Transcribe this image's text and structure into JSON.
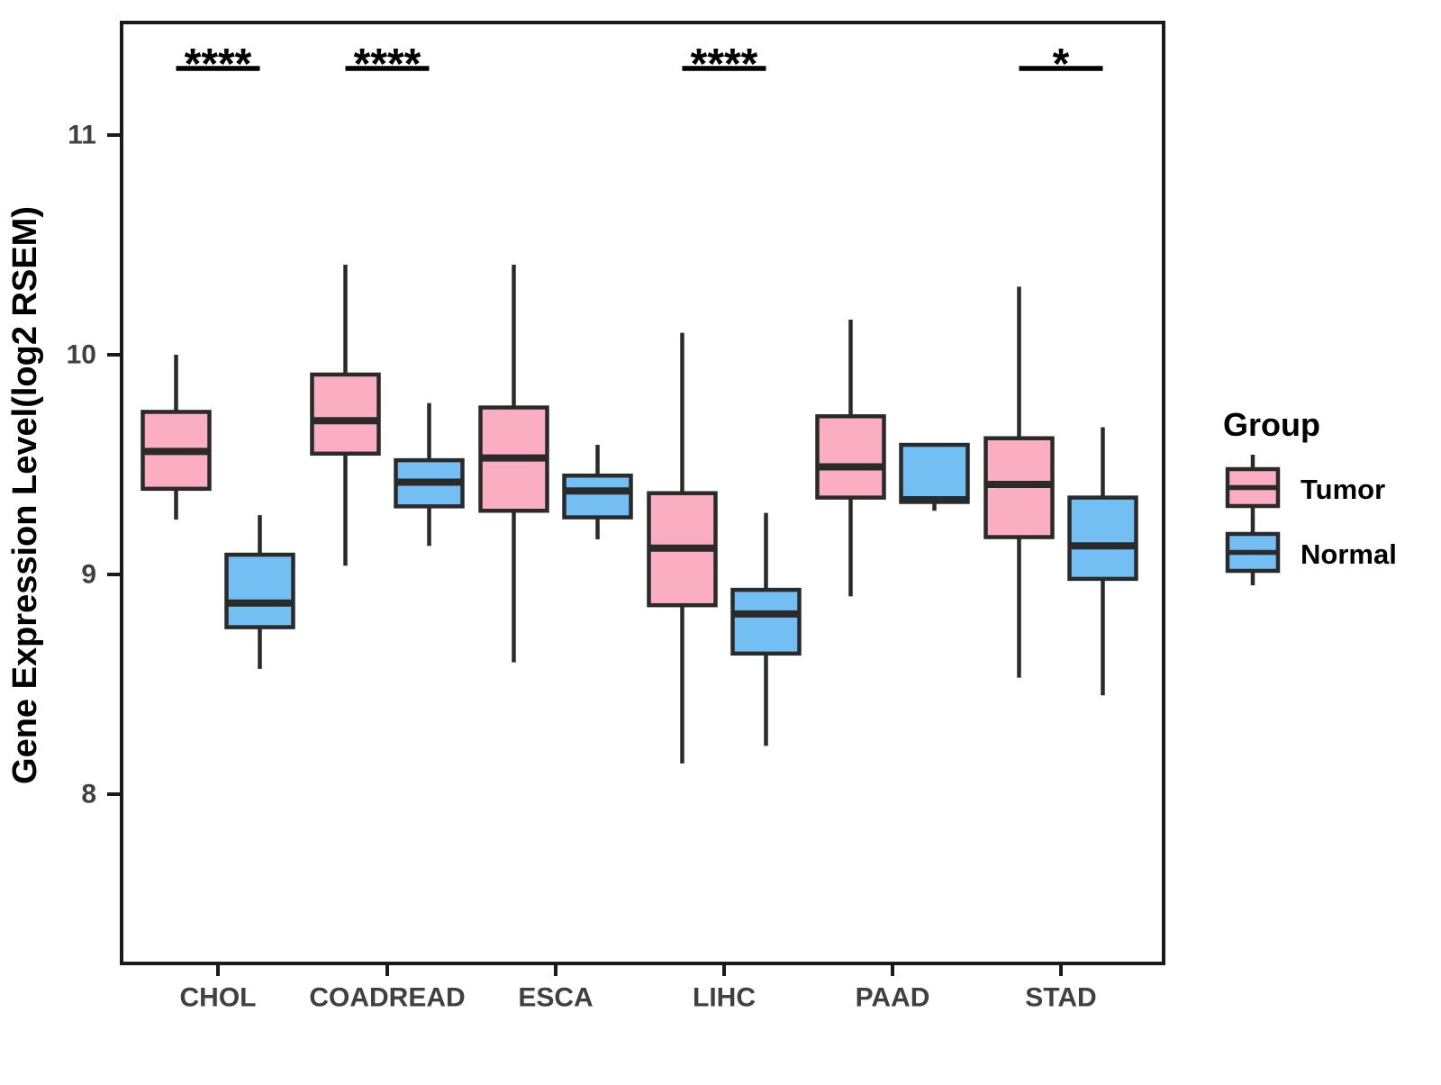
{
  "chart_data": {
    "type": "boxplot",
    "title": "",
    "ylabel": "Gene Expression Level(log2 RSEM)",
    "xlabel": "",
    "categories": [
      "CHOL",
      "COADREAD",
      "ESCA",
      "LIHC",
      "PAAD",
      "STAD"
    ],
    "y_axis": {
      "ticks": [
        8,
        9,
        10,
        11
      ],
      "range": [
        7.23,
        11.51
      ],
      "grid": false
    },
    "legend": {
      "title": "Group",
      "position": "right"
    },
    "series": [
      {
        "name": "Tumor",
        "color": "#FBAEC1",
        "boxes": [
          {
            "category": "CHOL",
            "min": 9.25,
            "q1": 9.39,
            "median": 9.56,
            "q3": 9.74,
            "max": 10.0
          },
          {
            "category": "COADREAD",
            "min": 9.04,
            "q1": 9.55,
            "median": 9.7,
            "q3": 9.91,
            "max": 10.41
          },
          {
            "category": "ESCA",
            "min": 8.6,
            "q1": 9.29,
            "median": 9.53,
            "q3": 9.76,
            "max": 10.41
          },
          {
            "category": "LIHC",
            "min": 8.14,
            "q1": 8.86,
            "median": 9.12,
            "q3": 9.37,
            "max": 10.1
          },
          {
            "category": "PAAD",
            "min": 8.9,
            "q1": 9.35,
            "median": 9.49,
            "q3": 9.72,
            "max": 10.16
          },
          {
            "category": "STAD",
            "min": 8.53,
            "q1": 9.17,
            "median": 9.41,
            "q3": 9.62,
            "max": 10.31
          }
        ]
      },
      {
        "name": "Normal",
        "color": "#73BFF4",
        "boxes": [
          {
            "category": "CHOL",
            "min": 8.57,
            "q1": 8.76,
            "median": 8.87,
            "q3": 9.09,
            "max": 9.27
          },
          {
            "category": "COADREAD",
            "min": 9.13,
            "q1": 9.31,
            "median": 9.42,
            "q3": 9.52,
            "max": 9.78
          },
          {
            "category": "ESCA",
            "min": 9.16,
            "q1": 9.26,
            "median": 9.38,
            "q3": 9.45,
            "max": 9.59
          },
          {
            "category": "LIHC",
            "min": 8.22,
            "q1": 8.64,
            "median": 8.82,
            "q3": 8.93,
            "max": 9.28
          },
          {
            "category": "PAAD",
            "min": 9.29,
            "q1": 9.33,
            "median": 9.34,
            "q3": 9.59,
            "max": 9.59
          },
          {
            "category": "STAD",
            "min": 8.45,
            "q1": 8.98,
            "median": 9.13,
            "q3": 9.35,
            "max": 9.67
          }
        ]
      }
    ],
    "significance": [
      {
        "category": "CHOL",
        "label": "****"
      },
      {
        "category": "COADREAD",
        "label": "****"
      },
      {
        "category": "LIHC",
        "label": "****"
      },
      {
        "category": "STAD",
        "label": "*"
      }
    ],
    "style": {
      "tumor_fill": "#FBAEC1",
      "normal_fill": "#73BFF4",
      "box_border": "#2A2A2A",
      "axis_color": "#1A1A1A",
      "tick_label_color": "#404040",
      "text_color": "#000000",
      "background": "#FFFFFF"
    }
  }
}
